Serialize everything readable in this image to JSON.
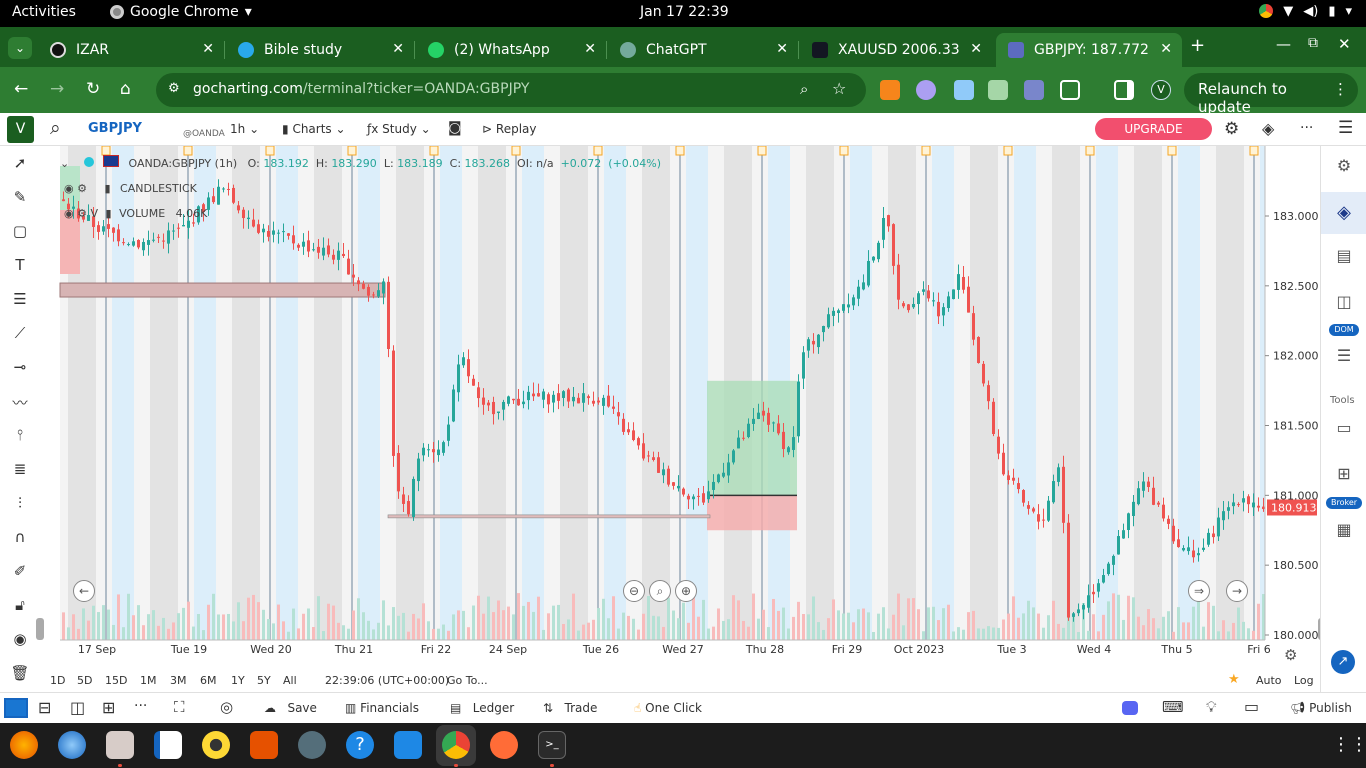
{
  "topbar": {
    "activities": "Activities",
    "app_name": "Google Chrome",
    "clock": "Jan 17  22:39"
  },
  "tabs": [
    {
      "title": "IZAR",
      "active": false
    },
    {
      "title": "Bible study",
      "active": false
    },
    {
      "title": "(2) WhatsApp",
      "active": false
    },
    {
      "title": "ChatGPT",
      "active": false
    },
    {
      "title": "XAUUSD 2006.33",
      "active": false
    },
    {
      "title": "GBPJPY: 187.772",
      "active": true
    }
  ],
  "address": {
    "host": "gocharting.com",
    "path": "/terminal?ticker=OANDA:GBPJPY",
    "relaunch": "Relaunch to update",
    "profile": "V"
  },
  "toolbar": {
    "logo": "V",
    "symbol": "GBPJPY",
    "exchange": "@OANDA",
    "interval": "1h",
    "charts": "Charts",
    "study": "Study",
    "replay": "Replay",
    "upgrade": "UPGRADE"
  },
  "legend": {
    "symbol": "OANDA:GBPJPY (1h)",
    "o_label": "O:",
    "o": "183.192",
    "h_label": "H:",
    "h": "183.290",
    "l_label": "L:",
    "l": "183.189",
    "c_label": "C:",
    "c": "183.268",
    "oi_label": "OI:",
    "oi": "n/a",
    "change": "+0.072",
    "change_pct": "(+0.04%)",
    "type": "CANDLESTICK",
    "volume_label": "VOLUME",
    "volume": "4.06K"
  },
  "price_axis": {
    "ticks": [
      "183.000",
      "182.500",
      "182.000",
      "181.500",
      "181.000",
      "180.500",
      "180.000"
    ],
    "current": "180.913"
  },
  "time_axis": [
    "17 Sep",
    "Tue 19",
    "Wed 20",
    "Thu 21",
    "Fri 22",
    "24 Sep",
    "Tue 26",
    "Wed 27",
    "Thu 28",
    "Fri 29",
    "Oct 2023",
    "Tue 3",
    "Wed 4",
    "Thu 5",
    "Fri 6"
  ],
  "rangebar": {
    "ranges": [
      "1D",
      "5D",
      "15D",
      "1M",
      "3M",
      "6M",
      "1Y",
      "5Y",
      "All"
    ],
    "time": "22:39:06 (UTC+00:00)",
    "goto": "Go To...",
    "auto": "Auto",
    "log": "Log"
  },
  "bottombar": {
    "save": "Save",
    "financials": "Financials",
    "ledger": "Ledger",
    "trade": "Trade",
    "one_click": "One Click",
    "publish": "Publish"
  },
  "rightrail": {
    "tools": "Tools",
    "dom": "DOM",
    "broker": "Broker"
  },
  "colors": {
    "bull": "#26a69a",
    "bear": "#ef5350",
    "chrome_dark": "#1b5e20",
    "chrome": "#2e7d32",
    "upgrade": "#f24f6e"
  }
}
